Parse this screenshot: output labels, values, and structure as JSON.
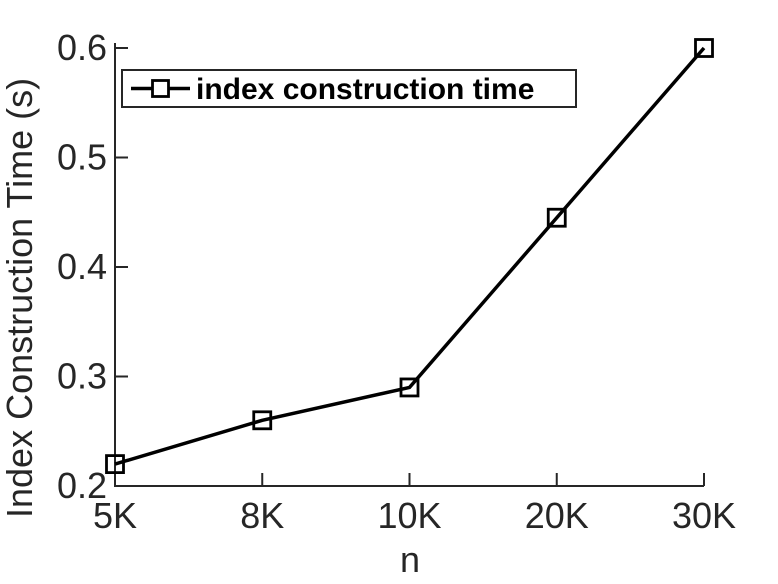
{
  "chart_data": {
    "type": "line",
    "title": "",
    "xlabel": "n",
    "ylabel": "Index Construction Time (s)",
    "categories": [
      "5K",
      "8K",
      "10K",
      "20K",
      "30K"
    ],
    "series": [
      {
        "name": "index construction time",
        "values": [
          0.22,
          0.26,
          0.29,
          0.445,
          0.6
        ],
        "marker": "open-square",
        "color": "#000000"
      }
    ],
    "ylim": [
      0.2,
      0.6
    ],
    "yticks": [
      0.2,
      0.3,
      0.4,
      0.5,
      0.6
    ],
    "ytick_labels": [
      "0.2",
      "0.3",
      "0.4",
      "0.5",
      "0.6"
    ],
    "grid": false,
    "legend_position": "top-left",
    "axis_color": "#262626",
    "line_color": "#000000",
    "background_color": "#ffffff"
  }
}
